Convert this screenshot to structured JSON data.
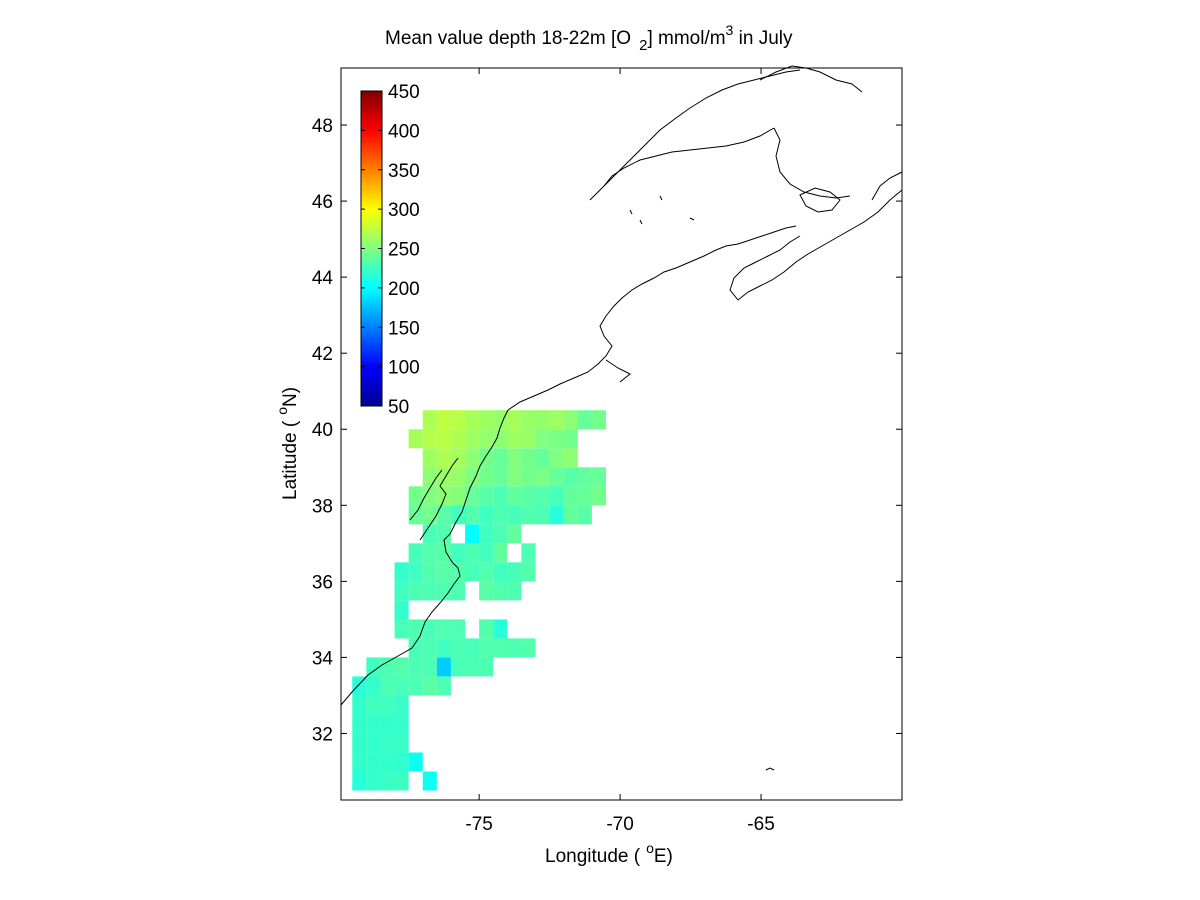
{
  "figure": {
    "title_main": "Mean value depth 18-22m [O",
    "title_sub": "2",
    "title_mid": "] mmol/m",
    "title_sup": "3",
    "title_end": " in July"
  },
  "chart_data": {
    "type": "heatmap",
    "title": "Mean value depth 18-22m [O 2] mmol/m3 in July",
    "xlabel": "Longitude ( °E)",
    "ylabel": "Latitude ( °N)",
    "xlabel_text": "Longitude (",
    "xlabel_sup": "o",
    "xlabel_end": "E)",
    "ylabel_text": "Latitude (",
    "ylabel_sup": "o",
    "ylabel_end": "N)",
    "xlim": [
      -79.9,
      -60.0
    ],
    "ylim": [
      30.25,
      49.5
    ],
    "xticks": [
      -75,
      -70,
      -65
    ],
    "xtick_labels": [
      "-75",
      "-70",
      "-65"
    ],
    "yticks": [
      32,
      34,
      36,
      38,
      40,
      42,
      44,
      46,
      48
    ],
    "ytick_labels": [
      "32",
      "34",
      "36",
      "38",
      "40",
      "42",
      "44",
      "46",
      "48"
    ],
    "colorbar": {
      "clim": [
        50,
        450
      ],
      "ticks": [
        50,
        100,
        150,
        200,
        250,
        300,
        350,
        400,
        450
      ],
      "tick_labels": [
        "50",
        "100",
        "150",
        "200",
        "250",
        "300",
        "350",
        "400",
        "450"
      ],
      "colormap": "jet",
      "location": "top-left inside"
    },
    "grid": false,
    "cell_size_deg": 0.5,
    "cell_origin": [
      -79.5,
      30.0
    ],
    "cell_value_note": "cells are [ix, iy, value]; lon = -79.5 + 0.5*ix, lat = 30 + 0.5*iy",
    "cells": [
      [
        0,
        1,
        215
      ],
      [
        0,
        2,
        220
      ],
      [
        1,
        1,
        220
      ],
      [
        1,
        2,
        220
      ],
      [
        2,
        1,
        222
      ],
      [
        2,
        2,
        220
      ],
      [
        3,
        1,
        224
      ],
      [
        3,
        2,
        218
      ],
      [
        0,
        3,
        220
      ],
      [
        1,
        3,
        220
      ],
      [
        2,
        3,
        222
      ],
      [
        3,
        3,
        222
      ],
      [
        4,
        2,
        205
      ],
      [
        5,
        1,
        205
      ],
      [
        0,
        4,
        220
      ],
      [
        1,
        4,
        220
      ],
      [
        2,
        4,
        220
      ],
      [
        3,
        4,
        220
      ],
      [
        0,
        5,
        220
      ],
      [
        1,
        5,
        225
      ],
      [
        2,
        5,
        225
      ],
      [
        3,
        5,
        222
      ],
      [
        0,
        6,
        215
      ],
      [
        1,
        6,
        220
      ],
      [
        2,
        6,
        230
      ],
      [
        3,
        6,
        228
      ],
      [
        4,
        6,
        230
      ],
      [
        5,
        6,
        235
      ],
      [
        6,
        6,
        230
      ],
      [
        1,
        7,
        225
      ],
      [
        2,
        7,
        230
      ],
      [
        3,
        7,
        232
      ],
      [
        4,
        7,
        230
      ],
      [
        5,
        7,
        230
      ],
      [
        6,
        7,
        180
      ],
      [
        7,
        7,
        228
      ],
      [
        8,
        7,
        230
      ],
      [
        9,
        7,
        230
      ],
      [
        4,
        8,
        228
      ],
      [
        5,
        8,
        230
      ],
      [
        6,
        8,
        225
      ],
      [
        7,
        8,
        230
      ],
      [
        8,
        8,
        228
      ],
      [
        9,
        8,
        232
      ],
      [
        10,
        8,
        232
      ],
      [
        11,
        8,
        230
      ],
      [
        12,
        8,
        232
      ],
      [
        3,
        9,
        228
      ],
      [
        4,
        9,
        230
      ],
      [
        5,
        9,
        228
      ],
      [
        6,
        9,
        232
      ],
      [
        7,
        9,
        230
      ],
      [
        9,
        9,
        232
      ],
      [
        10,
        9,
        215
      ],
      [
        3,
        10,
        220
      ],
      [
        3,
        11,
        225
      ],
      [
        4,
        11,
        230
      ],
      [
        5,
        11,
        230
      ],
      [
        6,
        11,
        230
      ],
      [
        7,
        11,
        230
      ],
      [
        9,
        11,
        235
      ],
      [
        10,
        11,
        232
      ],
      [
        11,
        11,
        230
      ],
      [
        3,
        12,
        220
      ],
      [
        4,
        12,
        225
      ],
      [
        5,
        12,
        232
      ],
      [
        6,
        12,
        235
      ],
      [
        7,
        12,
        232
      ],
      [
        8,
        12,
        228
      ],
      [
        9,
        12,
        232
      ],
      [
        10,
        12,
        225
      ],
      [
        11,
        12,
        228
      ],
      [
        12,
        12,
        232
      ],
      [
        4,
        13,
        228
      ],
      [
        5,
        13,
        232
      ],
      [
        6,
        13,
        235
      ],
      [
        7,
        13,
        225
      ],
      [
        8,
        13,
        230
      ],
      [
        9,
        13,
        225
      ],
      [
        10,
        13,
        238
      ],
      [
        12,
        13,
        230
      ],
      [
        5,
        14,
        228
      ],
      [
        6,
        14,
        232
      ],
      [
        8,
        14,
        200
      ],
      [
        9,
        14,
        225
      ],
      [
        10,
        14,
        230
      ],
      [
        11,
        14,
        238
      ],
      [
        4,
        15,
        240
      ],
      [
        5,
        15,
        245
      ],
      [
        6,
        15,
        235
      ],
      [
        7,
        15,
        225
      ],
      [
        8,
        15,
        232
      ],
      [
        9,
        15,
        225
      ],
      [
        10,
        15,
        230
      ],
      [
        11,
        15,
        228
      ],
      [
        12,
        15,
        232
      ],
      [
        13,
        15,
        230
      ],
      [
        14,
        15,
        215
      ],
      [
        15,
        15,
        238
      ],
      [
        16,
        15,
        235
      ],
      [
        4,
        16,
        245
      ],
      [
        5,
        16,
        250
      ],
      [
        6,
        16,
        255
      ],
      [
        7,
        16,
        252
      ],
      [
        8,
        16,
        240
      ],
      [
        9,
        16,
        235
      ],
      [
        10,
        16,
        230
      ],
      [
        11,
        16,
        238
      ],
      [
        12,
        16,
        235
      ],
      [
        13,
        16,
        232
      ],
      [
        14,
        16,
        228
      ],
      [
        15,
        16,
        238
      ],
      [
        16,
        16,
        240
      ],
      [
        17,
        16,
        245
      ],
      [
        5,
        17,
        255
      ],
      [
        6,
        17,
        260
      ],
      [
        7,
        17,
        258
      ],
      [
        8,
        17,
        250
      ],
      [
        9,
        17,
        245
      ],
      [
        10,
        17,
        240
      ],
      [
        11,
        17,
        250
      ],
      [
        12,
        17,
        245
      ],
      [
        13,
        17,
        248
      ],
      [
        14,
        17,
        240
      ],
      [
        15,
        17,
        235
      ],
      [
        16,
        17,
        238
      ],
      [
        17,
        17,
        240
      ],
      [
        5,
        18,
        262
      ],
      [
        6,
        18,
        268
      ],
      [
        7,
        18,
        265
      ],
      [
        8,
        18,
        255
      ],
      [
        9,
        18,
        245
      ],
      [
        10,
        18,
        240
      ],
      [
        11,
        18,
        250
      ],
      [
        12,
        18,
        245
      ],
      [
        13,
        18,
        240
      ],
      [
        14,
        18,
        250
      ],
      [
        15,
        18,
        255
      ],
      [
        4,
        19,
        265
      ],
      [
        5,
        19,
        270
      ],
      [
        6,
        19,
        272
      ],
      [
        7,
        19,
        268
      ],
      [
        8,
        19,
        262
      ],
      [
        9,
        19,
        258
      ],
      [
        10,
        19,
        255
      ],
      [
        11,
        19,
        262
      ],
      [
        12,
        19,
        260
      ],
      [
        13,
        19,
        250
      ],
      [
        14,
        19,
        248
      ],
      [
        15,
        19,
        245
      ],
      [
        5,
        20,
        268
      ],
      [
        6,
        20,
        275
      ],
      [
        7,
        20,
        272
      ],
      [
        8,
        20,
        265
      ],
      [
        9,
        20,
        262
      ],
      [
        10,
        20,
        258
      ],
      [
        11,
        20,
        265
      ],
      [
        12,
        20,
        260
      ],
      [
        13,
        20,
        258
      ],
      [
        14,
        20,
        262
      ],
      [
        15,
        20,
        255
      ],
      [
        16,
        20,
        240
      ],
      [
        17,
        20,
        245
      ]
    ]
  }
}
